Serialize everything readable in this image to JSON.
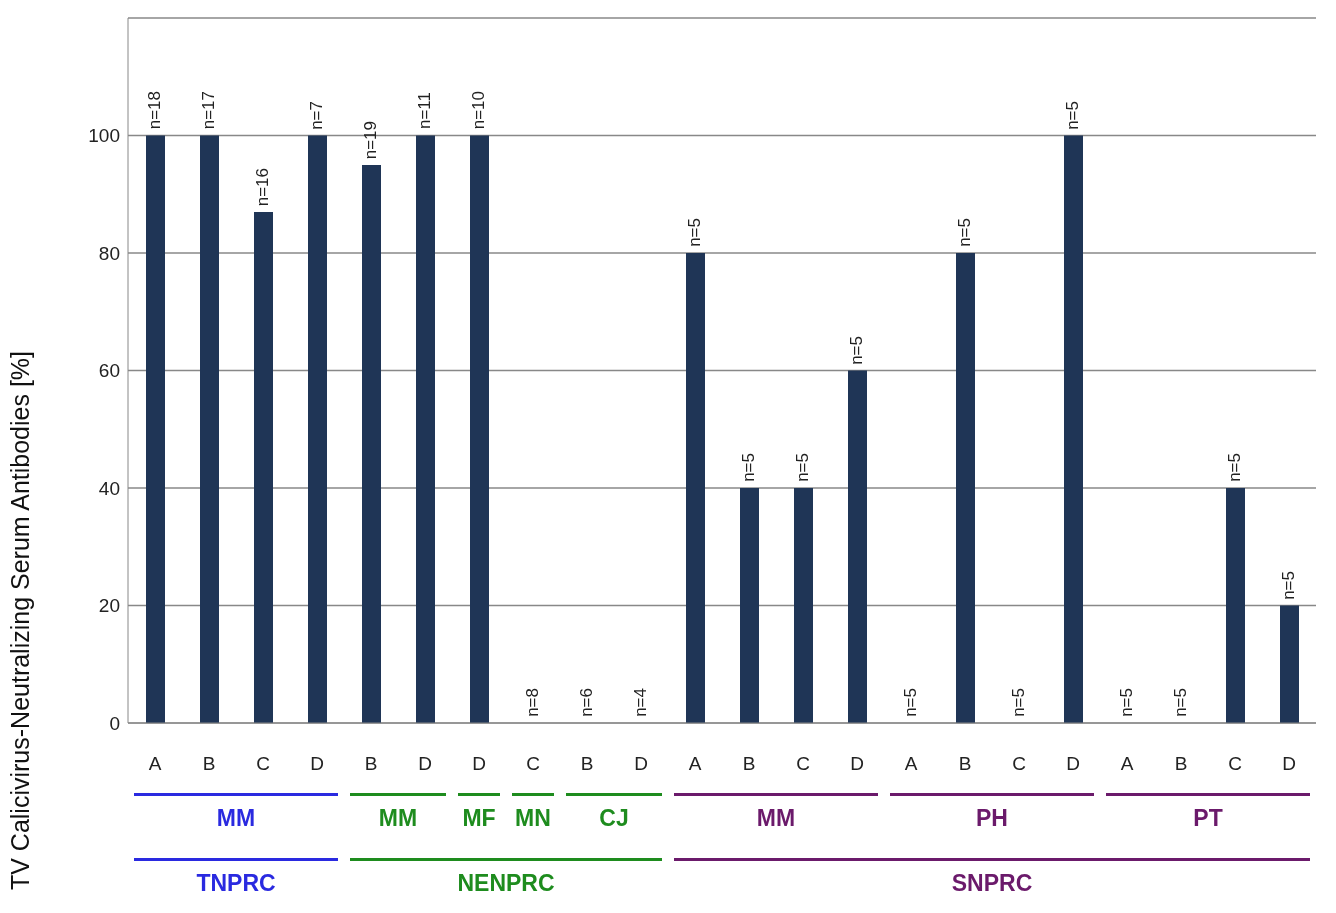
{
  "chart_data": {
    "type": "bar",
    "ylabel": "TV Calicivirus-Neutralizing Serum Antibodies [%]",
    "categories": [
      "A",
      "B",
      "C",
      "D",
      "B",
      "D",
      "D",
      "C",
      "B",
      "D",
      "A",
      "B",
      "C",
      "D",
      "A",
      "B",
      "C",
      "D",
      "A",
      "B",
      "C",
      "D"
    ],
    "values": [
      100,
      100,
      87,
      100,
      95,
      100,
      100,
      0,
      0,
      0,
      80,
      40,
      40,
      60,
      0,
      80,
      0,
      100,
      0,
      0,
      40,
      20
    ],
    "color": "#1f3556",
    "ylim": [
      0,
      120
    ],
    "yticks": [
      0,
      20,
      40,
      60,
      80,
      100,
      {
        "value": 120,
        "label": null
      }
    ],
    "grid": "y",
    "annotations": [
      "n=18",
      "n=17",
      "n=16",
      "n=7",
      "n=19",
      "n=11",
      "n=10",
      "n=8",
      "n=6",
      "n=4",
      "n=5",
      "n=5",
      "n=5",
      "n=5",
      "n=5",
      "n=5",
      "n=5",
      "n=5",
      "n=5",
      "n=5",
      "n=5",
      "n=5",
      "MM",
      "MM",
      "MF",
      "MN",
      "CJ",
      "MM",
      "PH",
      "PT",
      "TNPRC",
      "NENPRC",
      "SNPRC"
    ]
  }
}
